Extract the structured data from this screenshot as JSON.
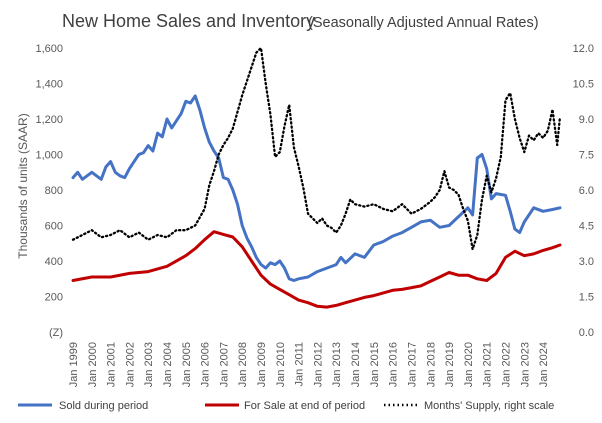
{
  "chart_data": {
    "type": "line",
    "title": "New Home Sales and Inventory",
    "subtitle": "(Seasonally Adjusted Annual Rates)",
    "ylabel": "Thousands of units (SAAR)",
    "xlabel": "",
    "ylim": [
      0,
      1600
    ],
    "y_ticks": [
      "(Z)",
      "200",
      "400",
      "600",
      "800",
      "1,000",
      "1,200",
      "1,400",
      "1,600"
    ],
    "y2lim": [
      0,
      12
    ],
    "y2_ticks": [
      "0.0",
      "1.5",
      "3.0",
      "4.5",
      "6.0",
      "7.5",
      "9.0",
      "10.5",
      "12.0"
    ],
    "x_ticks": [
      "Jan 1999",
      "Jan 2000",
      "Jan 2001",
      "Jan 2002",
      "Jan 2003",
      "Jan 2004",
      "Jan 2005",
      "Jan 2006",
      "Jan 2007",
      "Jan 2008",
      "Jan 2009",
      "Jan 2010",
      "Jan 2011",
      "Jan 2012",
      "Jan 2013",
      "Jan 2014",
      "Jan 2015",
      "Jan 2016",
      "Jan 2017",
      "Jan 2018",
      "Jan 2019",
      "Jan 2020",
      "Jan 2021",
      "Jan 2022",
      "Jan 2023",
      "Jan 2024"
    ],
    "x_range": [
      1999.0,
      2024.9
    ],
    "grid": false,
    "legend_position": "bottom",
    "series": [
      {
        "name": "Sold during period",
        "axis": "left",
        "color": "#4472C4",
        "style": "solid",
        "x": [
          1999.0,
          1999.25,
          1999.5,
          1999.75,
          2000.0,
          2000.25,
          2000.5,
          2000.75,
          2001.0,
          2001.25,
          2001.5,
          2001.75,
          2002.0,
          2002.25,
          2002.5,
          2002.75,
          2003.0,
          2003.25,
          2003.5,
          2003.75,
          2004.0,
          2004.25,
          2004.5,
          2004.75,
          2005.0,
          2005.25,
          2005.5,
          2005.75,
          2006.0,
          2006.25,
          2006.5,
          2006.75,
          2007.0,
          2007.25,
          2007.5,
          2007.75,
          2008.0,
          2008.25,
          2008.5,
          2008.75,
          2009.0,
          2009.25,
          2009.5,
          2009.75,
          2010.0,
          2010.25,
          2010.5,
          2010.75,
          2011.0,
          2011.5,
          2012.0,
          2012.5,
          2013.0,
          2013.25,
          2013.5,
          2014.0,
          2014.5,
          2015.0,
          2015.5,
          2016.0,
          2016.5,
          2017.0,
          2017.5,
          2018.0,
          2018.5,
          2019.0,
          2019.5,
          2020.0,
          2020.25,
          2020.5,
          2020.75,
          2021.0,
          2021.25,
          2021.5,
          2022.0,
          2022.25,
          2022.5,
          2022.75,
          2023.0,
          2023.5,
          2024.0,
          2024.5,
          2024.9
        ],
        "values": [
          870,
          900,
          860,
          880,
          900,
          880,
          860,
          930,
          960,
          900,
          880,
          870,
          920,
          960,
          1000,
          1010,
          1050,
          1020,
          1120,
          1100,
          1200,
          1150,
          1190,
          1230,
          1300,
          1290,
          1330,
          1250,
          1150,
          1070,
          1020,
          980,
          870,
          860,
          800,
          720,
          600,
          530,
          480,
          420,
          380,
          360,
          390,
          380,
          400,
          360,
          300,
          290,
          300,
          310,
          340,
          360,
          380,
          420,
          390,
          440,
          420,
          490,
          510,
          540,
          560,
          590,
          620,
          630,
          590,
          600,
          650,
          700,
          660,
          980,
          1000,
          920,
          750,
          780,
          770,
          680,
          580,
          560,
          620,
          700,
          680,
          690,
          700
        ]
      },
      {
        "name": "For Sale at end of period",
        "axis": "left",
        "color": "#C00000",
        "style": "solid",
        "x": [
          1999.0,
          2000.0,
          2001.0,
          2002.0,
          2003.0,
          2004.0,
          2005.0,
          2005.5,
          2006.0,
          2006.5,
          2007.0,
          2007.5,
          2008.0,
          2008.5,
          2009.0,
          2009.5,
          2010.0,
          2010.5,
          2011.0,
          2011.5,
          2012.0,
          2012.5,
          2013.0,
          2013.5,
          2014.0,
          2014.5,
          2015.0,
          2015.5,
          2016.0,
          2016.5,
          2017.0,
          2017.5,
          2018.0,
          2018.5,
          2019.0,
          2019.5,
          2020.0,
          2020.5,
          2021.0,
          2021.5,
          2022.0,
          2022.5,
          2023.0,
          2023.5,
          2024.0,
          2024.5,
          2024.9
        ],
        "values": [
          290,
          310,
          310,
          330,
          340,
          370,
          430,
          470,
          520,
          565,
          550,
          535,
          480,
          400,
          320,
          270,
          240,
          210,
          180,
          165,
          145,
          140,
          150,
          165,
          180,
          195,
          205,
          220,
          235,
          240,
          250,
          260,
          285,
          310,
          335,
          320,
          320,
          300,
          290,
          330,
          420,
          455,
          430,
          440,
          460,
          475,
          490
        ]
      },
      {
        "name": "Months' Supply, right scale",
        "axis": "right",
        "color": "#000000",
        "style": "dotted",
        "x": [
          1999.0,
          1999.5,
          2000.0,
          2000.5,
          2001.0,
          2001.5,
          2002.0,
          2002.5,
          2003.0,
          2003.5,
          2004.0,
          2004.5,
          2005.0,
          2005.5,
          2006.0,
          2006.25,
          2006.5,
          2006.75,
          2007.0,
          2007.25,
          2007.5,
          2007.75,
          2008.0,
          2008.25,
          2008.5,
          2008.75,
          2009.0,
          2009.25,
          2009.5,
          2009.75,
          2010.0,
          2010.25,
          2010.5,
          2010.75,
          2011.0,
          2011.25,
          2011.5,
          2011.75,
          2012.0,
          2012.25,
          2012.5,
          2012.75,
          2013.0,
          2013.25,
          2013.5,
          2013.75,
          2014.0,
          2014.5,
          2015.0,
          2015.5,
          2016.0,
          2016.5,
          2017.0,
          2017.5,
          2018.0,
          2018.25,
          2018.5,
          2018.75,
          2019.0,
          2019.25,
          2019.5,
          2019.75,
          2020.0,
          2020.25,
          2020.5,
          2020.75,
          2021.0,
          2021.25,
          2021.5,
          2021.75,
          2022.0,
          2022.25,
          2022.5,
          2022.75,
          2023.0,
          2023.25,
          2023.5,
          2023.75,
          2024.0,
          2024.25,
          2024.5,
          2024.75,
          2024.9
        ],
        "values": [
          3.9,
          4.1,
          4.3,
          4.0,
          4.1,
          4.3,
          4.0,
          4.2,
          3.9,
          4.1,
          4.0,
          4.3,
          4.3,
          4.5,
          5.2,
          6.2,
          6.8,
          7.5,
          7.9,
          8.2,
          8.6,
          9.3,
          10.0,
          10.6,
          11.2,
          11.8,
          12.0,
          10.5,
          9.2,
          7.4,
          7.6,
          8.7,
          9.6,
          7.8,
          7.0,
          6.1,
          5.0,
          4.8,
          4.6,
          4.8,
          4.5,
          4.4,
          4.2,
          4.5,
          5.0,
          5.6,
          5.4,
          5.3,
          5.4,
          5.2,
          5.1,
          5.4,
          5.0,
          5.2,
          5.5,
          5.7,
          6.0,
          6.8,
          6.1,
          6.0,
          5.8,
          5.2,
          4.7,
          3.5,
          4.1,
          5.6,
          6.6,
          5.9,
          6.5,
          7.4,
          9.8,
          10.1,
          9.0,
          8.2,
          7.6,
          8.3,
          8.1,
          8.4,
          8.2,
          8.5,
          9.4,
          7.9,
          9.1
        ]
      }
    ]
  }
}
